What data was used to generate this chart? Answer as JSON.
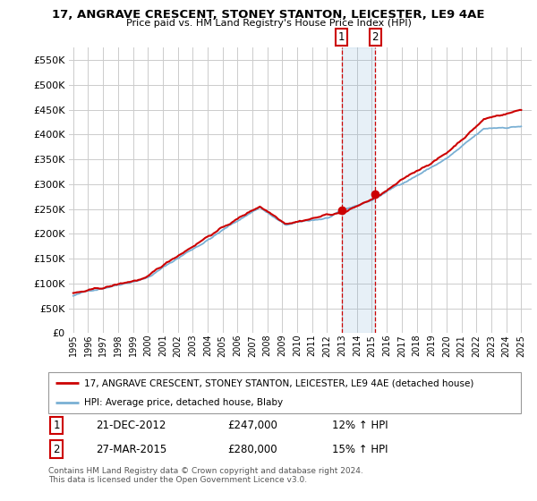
{
  "title": "17, ANGRAVE CRESCENT, STONEY STANTON, LEICESTER, LE9 4AE",
  "subtitle": "Price paid vs. HM Land Registry's House Price Index (HPI)",
  "legend_label_red": "17, ANGRAVE CRESCENT, STONEY STANTON, LEICESTER, LE9 4AE (detached house)",
  "legend_label_blue": "HPI: Average price, detached house, Blaby",
  "transaction1_date": "21-DEC-2012",
  "transaction1_price": "£247,000",
  "transaction1_hpi": "12% ↑ HPI",
  "transaction2_date": "27-MAR-2015",
  "transaction2_price": "£280,000",
  "transaction2_hpi": "15% ↑ HPI",
  "footer": "Contains HM Land Registry data © Crown copyright and database right 2024.\nThis data is licensed under the Open Government Licence v3.0.",
  "ylim": [
    0,
    575000
  ],
  "yticks": [
    0,
    50000,
    100000,
    150000,
    200000,
    250000,
    300000,
    350000,
    400000,
    450000,
    500000,
    550000
  ],
  "grid_color": "#cccccc",
  "red_color": "#cc0000",
  "blue_color": "#7ab0d4",
  "marker1_x": 2012.97,
  "marker1_y": 247000,
  "marker2_x": 2015.23,
  "marker2_y": 280000,
  "vline1_x": 2012.97,
  "vline2_x": 2015.23,
  "xlim_left": 1994.7,
  "xlim_right": 2025.7
}
